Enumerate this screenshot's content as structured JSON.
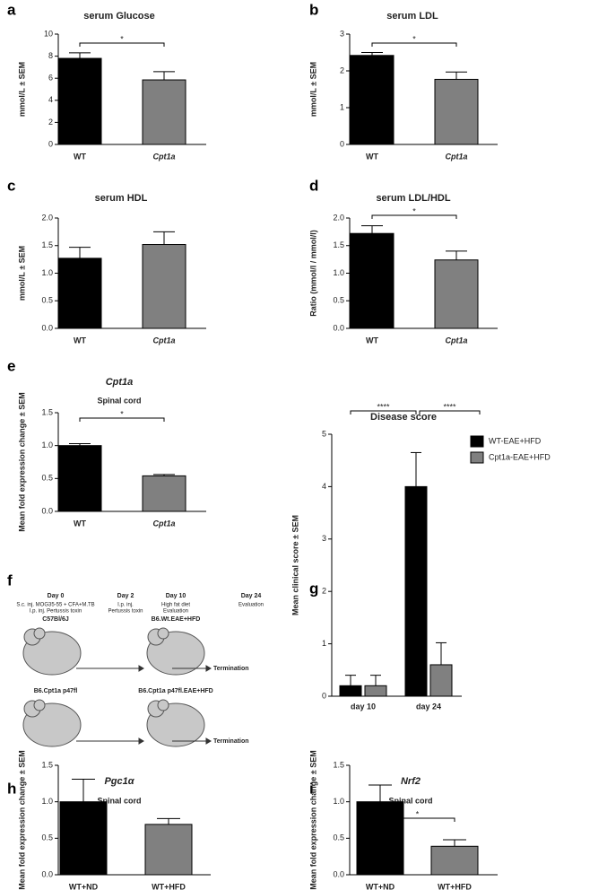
{
  "chart_data": [
    {
      "type": "bar",
      "label": "a",
      "title": "serum Glucose",
      "ylabel": "mmol/L ± SEM",
      "categories": [
        "WT",
        "Cpt1a"
      ],
      "italic": [
        false,
        true
      ],
      "values": [
        7.8,
        5.85
      ],
      "errors": [
        0.5,
        0.75
      ],
      "colors": [
        "#000000",
        "#808080"
      ],
      "ylim": [
        0,
        10
      ],
      "yticks": [
        0,
        2,
        4,
        6,
        8,
        10
      ],
      "annotations": [
        "*"
      ]
    },
    {
      "type": "bar",
      "label": "b",
      "title": "serum LDL",
      "ylabel": "mmol/L ± SEM",
      "categories": [
        "WT",
        "Cpt1a"
      ],
      "italic": [
        false,
        true
      ],
      "values": [
        2.42,
        1.77
      ],
      "errors": [
        0.08,
        0.2
      ],
      "colors": [
        "#000000",
        "#808080"
      ],
      "ylim": [
        0,
        3
      ],
      "yticks": [
        0,
        1,
        2,
        3
      ],
      "annotations": [
        "*"
      ]
    },
    {
      "type": "bar",
      "label": "c",
      "title": "serum HDL",
      "ylabel": "mmol/L ± SEM",
      "categories": [
        "WT",
        "Cpt1a"
      ],
      "italic": [
        false,
        true
      ],
      "values": [
        1.27,
        1.52
      ],
      "errors": [
        0.2,
        0.23
      ],
      "colors": [
        "#000000",
        "#808080"
      ],
      "ylim": [
        0,
        2
      ],
      "yticks": [
        {
          "value": 0,
          "label": "0.0"
        },
        {
          "value": 0.5,
          "label": "0.5"
        },
        {
          "value": 1,
          "label": "1.0"
        },
        {
          "value": 1.5,
          "label": "1.5"
        },
        {
          "value": 2,
          "label": "2.0"
        }
      ]
    },
    {
      "type": "bar",
      "label": "d",
      "title": "serum LDL/HDL",
      "ylabel": "Ratio (mmol/l / mmol/l)",
      "categories": [
        "WT",
        "Cpt1a"
      ],
      "italic": [
        false,
        true
      ],
      "values": [
        1.72,
        1.24
      ],
      "errors": [
        0.14,
        0.16
      ],
      "colors": [
        "#000000",
        "#808080"
      ],
      "ylim": [
        0,
        2
      ],
      "yticks": [
        {
          "value": 0,
          "label": "0.0"
        },
        {
          "value": 0.5,
          "label": "0.5"
        },
        {
          "value": 1,
          "label": "1.0"
        },
        {
          "value": 1.5,
          "label": "1.5"
        },
        {
          "value": 2,
          "label": "2.0"
        }
      ],
      "annotations": [
        "*"
      ]
    },
    {
      "type": "bar",
      "label": "e",
      "title": "Cpt1a",
      "title_italic": true,
      "subtitle": "Spinal cord",
      "ylabel": "Mean fold expression change ± SEM",
      "categories": [
        "WT",
        "Cpt1a"
      ],
      "italic": [
        false,
        true
      ],
      "values": [
        1.0,
        0.54
      ],
      "errors": [
        0.03,
        0.02
      ],
      "colors": [
        "#000000",
        "#808080"
      ],
      "ylim": [
        0,
        1.5
      ],
      "yticks": [
        {
          "value": 0,
          "label": "0.0"
        },
        {
          "value": 0.5,
          "label": "0.5"
        },
        {
          "value": 1,
          "label": "1.0"
        },
        {
          "value": 1.5,
          "label": "1.5"
        }
      ],
      "annotations": [
        "*"
      ]
    },
    {
      "type": "grouped_bar",
      "label": "g",
      "title": "Disease score",
      "ylabel": "Mean clinical score ± SEM",
      "categories": [
        "day 10",
        "day 24"
      ],
      "series": [
        {
          "name": "WT-EAE+HFD",
          "color": "#000000",
          "values": [
            0.2,
            4.0
          ],
          "errors": [
            0.2,
            0.65
          ]
        },
        {
          "name": "Cpt1a-EAE+HFD",
          "color": "#808080",
          "values": [
            0.2,
            0.6
          ],
          "errors": [
            0.2,
            0.42
          ]
        }
      ],
      "ylim": [
        0,
        5
      ],
      "yticks": [
        0,
        1,
        2,
        3,
        4,
        5
      ],
      "annotations": [
        "****",
        "****"
      ]
    },
    {
      "type": "bar",
      "label": "h",
      "title": "Pgc1α",
      "title_italic": true,
      "subtitle": "Spinal cord",
      "ylabel": "Mean fold expression change ± SEM",
      "categories": [
        "WT+ND",
        "WT+HFD"
      ],
      "italic": [
        false,
        false
      ],
      "values": [
        1.0,
        0.69
      ],
      "errors": [
        0.31,
        0.08
      ],
      "colors": [
        "#000000",
        "#808080"
      ],
      "ylim": [
        0,
        1.5
      ],
      "yticks": [
        {
          "value": 0,
          "label": "0.0"
        },
        {
          "value": 0.5,
          "label": "0.5"
        },
        {
          "value": 1,
          "label": "1.0"
        },
        {
          "value": 1.5,
          "label": "1.5"
        }
      ]
    },
    {
      "type": "bar",
      "label": "i",
      "title": "Nrf2",
      "title_italic": true,
      "subtitle": "Spinal cord",
      "ylabel": "Mean fold expression change ± SEM",
      "categories": [
        "WT+ND",
        "WT+HFD"
      ],
      "italic": [
        false,
        false
      ],
      "values": [
        1.0,
        0.39
      ],
      "errors": [
        0.23,
        0.09
      ],
      "colors": [
        "#000000",
        "#808080"
      ],
      "ylim": [
        0,
        1.5
      ],
      "yticks": [
        {
          "value": 0,
          "label": "0.0"
        },
        {
          "value": 0.5,
          "label": "0.5"
        },
        {
          "value": 1,
          "label": "1.0"
        },
        {
          "value": 1.5,
          "label": "1.5"
        }
      ],
      "annotations": [
        "*"
      ]
    }
  ],
  "diagram": {
    "label": "f",
    "steps": [
      {
        "day": "Day 0",
        "lines": [
          "S.c. inj. MOG35-55 + CFA+M.TB",
          "I.p. inj. Pertussis toxin"
        ]
      },
      {
        "day": "Day 2",
        "lines": [
          "I.p. inj.",
          "Pertussis toxin"
        ]
      },
      {
        "day": "Day 10",
        "lines": [
          "High fat diet",
          "Evaluation"
        ]
      },
      {
        "day": "Day 24",
        "lines": [
          "Evaluation"
        ]
      }
    ],
    "rows": [
      {
        "strain": "C57Bl/6J",
        "group": "B6.Wt.EAE+HFD",
        "end": "Termination"
      },
      {
        "strain": "B6.Cpt1a p47fl",
        "group": "B6.Cpt1a p47fl.EAE+HFD",
        "end": "Termination"
      }
    ]
  }
}
